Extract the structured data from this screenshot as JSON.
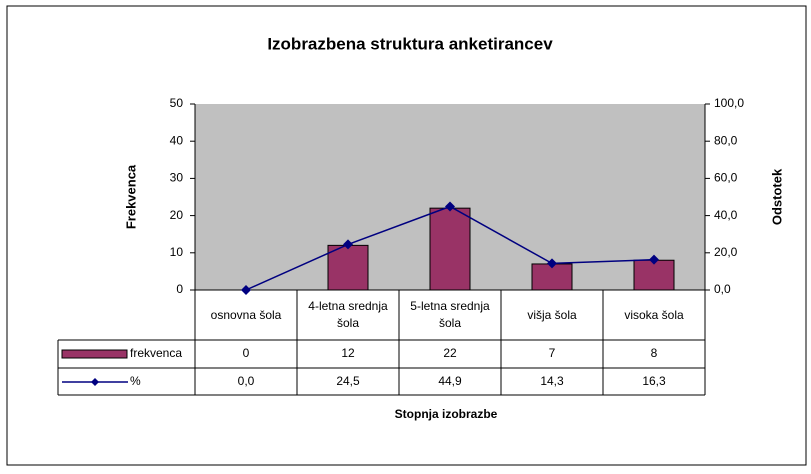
{
  "chart_data": {
    "type": "bar_line",
    "title": "Izobrazbena struktura anketirancev",
    "x_label": "Stopnja izobrazbe",
    "y_label": "Frekvenca",
    "y2_label": "Odstotek",
    "categories": [
      "osnovna šola",
      "4-letna srednja šola",
      "5-letna srednja šola",
      "višja šola",
      "visoka šola"
    ],
    "series": [
      {
        "name": "frekvenca",
        "type": "bar",
        "color": "#993366",
        "values": [
          0,
          12,
          22,
          7,
          8
        ]
      },
      {
        "name": "%",
        "type": "line",
        "axis": "y2",
        "color": "#000080",
        "values": [
          0,
          24.5,
          44.9,
          14.3,
          16.3
        ],
        "value_labels": [
          "0,0",
          "24,5",
          "44,9",
          "14,3",
          "16,3"
        ]
      }
    ],
    "ylim": [
      0,
      50
    ],
    "yticks": [
      0,
      10,
      20,
      30,
      40,
      50
    ],
    "y2lim": [
      0,
      100
    ],
    "y2ticks": [
      {
        "value": 0,
        "label": "0,0"
      },
      {
        "value": 20,
        "label": "20,0"
      },
      {
        "value": 40,
        "label": "40,0"
      },
      {
        "value": 60,
        "label": "60,0"
      },
      {
        "value": 80,
        "label": "80,0"
      },
      {
        "value": 100,
        "label": "100,0"
      }
    ],
    "plot_background": "#c0c0c0",
    "grid": false
  }
}
